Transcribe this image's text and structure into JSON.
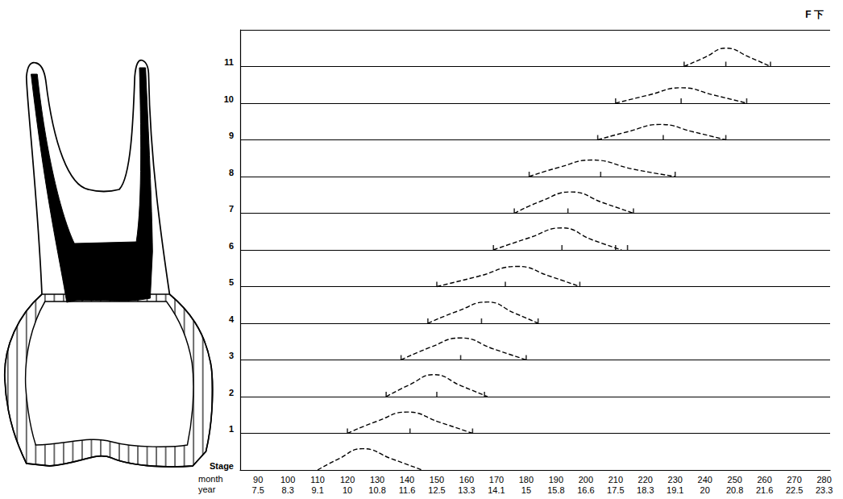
{
  "chart_data": {
    "type": "line",
    "annotation": "F 下",
    "color": "#000000",
    "line_style": "dashed",
    "grid": true,
    "xlim": [
      84,
      282
    ],
    "xticks": [
      90,
      100,
      110,
      120,
      130,
      140,
      150,
      160,
      170,
      180,
      190,
      200,
      210,
      220,
      230,
      240,
      250,
      260,
      270,
      280
    ],
    "year_labels": [
      7.5,
      8.3,
      9.1,
      10,
      10.8,
      11.6,
      12.5,
      13.3,
      14.1,
      15,
      15.8,
      16.6,
      17.5,
      18.3,
      19.1,
      20,
      20.8,
      21.6,
      22.5,
      23.3
    ],
    "x_label_rows": [
      "month",
      "year"
    ],
    "ylim": [
      0,
      12
    ],
    "yticks": [
      {
        "value": 0,
        "label": "Stage"
      },
      1,
      2,
      3,
      4,
      5,
      6,
      7,
      8,
      9,
      10,
      11
    ],
    "series": [
      {
        "stage": 0,
        "values": [
          [
            110,
            0
          ],
          [
            117,
            0.3
          ],
          [
            125,
            0.58
          ],
          [
            135,
            0.3
          ],
          [
            145,
            0
          ]
        ]
      },
      {
        "stage": 1,
        "values": [
          [
            120,
            1
          ],
          [
            130,
            1.33
          ],
          [
            140,
            1.58
          ],
          [
            151,
            1.3
          ],
          [
            162,
            1
          ]
        ],
        "marks": [
          120,
          141,
          162
        ]
      },
      {
        "stage": 2,
        "values": [
          [
            133,
            2
          ],
          [
            141,
            2.33
          ],
          [
            149,
            2.6
          ],
          [
            158,
            2.3
          ],
          [
            167,
            2
          ]
        ],
        "marks": [
          133,
          150,
          166
        ]
      },
      {
        "stage": 3,
        "values": [
          [
            138,
            3
          ],
          [
            148,
            3.35
          ],
          [
            158,
            3.6
          ],
          [
            169,
            3.3
          ],
          [
            180,
            3
          ]
        ],
        "marks": [
          138,
          158,
          180
        ]
      },
      {
        "stage": 4,
        "values": [
          [
            147,
            4
          ],
          [
            157,
            4.33
          ],
          [
            167,
            4.58
          ],
          [
            176,
            4.28
          ],
          [
            184,
            4
          ]
        ],
        "marks": [
          147,
          165,
          184
        ]
      },
      {
        "stage": 5,
        "values": [
          [
            150,
            5
          ],
          [
            164,
            5.28
          ],
          [
            177,
            5.55
          ],
          [
            188,
            5.28
          ],
          [
            198,
            5
          ]
        ],
        "marks": [
          150,
          173,
          198
        ]
      },
      {
        "stage": 6,
        "values": [
          [
            169,
            6
          ],
          [
            181,
            6.33
          ],
          [
            192,
            6.6
          ],
          [
            202,
            6.28
          ],
          [
            212,
            6
          ]
        ],
        "marks": [
          169,
          192,
          210,
          214
        ]
      },
      {
        "stage": 7,
        "values": [
          [
            176,
            7
          ],
          [
            185,
            7.33
          ],
          [
            195,
            7.58
          ],
          [
            206,
            7.28
          ],
          [
            216,
            7
          ]
        ],
        "marks": [
          176,
          194,
          216
        ]
      },
      {
        "stage": 8,
        "values": [
          [
            181,
            8
          ],
          [
            191,
            8.25
          ],
          [
            202,
            8.45
          ],
          [
            216,
            8.2
          ],
          [
            230,
            8
          ]
        ],
        "marks": [
          181,
          205,
          230
        ]
      },
      {
        "stage": 9,
        "values": [
          [
            204,
            9
          ],
          [
            214,
            9.22
          ],
          [
            225,
            9.42
          ],
          [
            236,
            9.22
          ],
          [
            247,
            9
          ]
        ],
        "marks": [
          204,
          226,
          247
        ]
      },
      {
        "stage": 10,
        "values": [
          [
            210,
            10
          ],
          [
            221,
            10.22
          ],
          [
            232,
            10.42
          ],
          [
            243,
            10.22
          ],
          [
            254,
            10
          ]
        ],
        "marks": [
          210,
          232,
          254
        ]
      },
      {
        "stage": 11,
        "values": [
          [
            233,
            11
          ],
          [
            240,
            11.25
          ],
          [
            247,
            11.5
          ],
          [
            255,
            11.25
          ],
          [
            262,
            11
          ]
        ],
        "marks": [
          233,
          247,
          262
        ]
      }
    ]
  }
}
